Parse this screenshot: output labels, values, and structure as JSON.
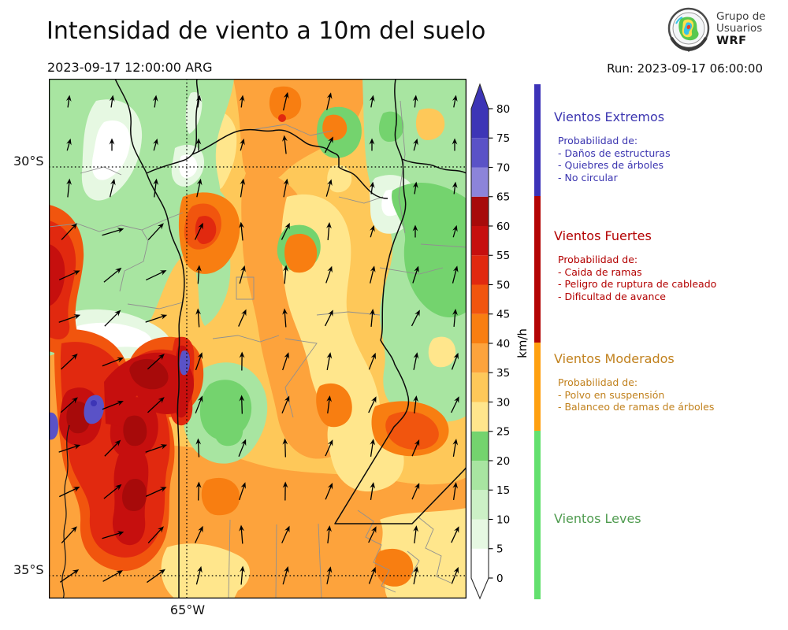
{
  "header": {
    "title": "Intensidad de viento a 10m del suelo",
    "valid_time": "2023-09-17 12:00:00 ARG",
    "run_label": "Run: 2023-09-17 06:00:00",
    "logo": {
      "line1": "Grupo de",
      "line2": "Usuarios",
      "line3": "WRF"
    }
  },
  "map_axes": {
    "lat_top_label": "30°S",
    "lat_bottom_label": "35°S",
    "lon_label": "65°W"
  },
  "colorbar": {
    "unit": "km/h",
    "ticks": [
      0,
      5,
      10,
      15,
      20,
      25,
      30,
      35,
      40,
      45,
      50,
      55,
      60,
      65,
      70,
      75,
      80
    ],
    "segments": [
      {
        "from": 0,
        "to": 5,
        "color": "#ffffff"
      },
      {
        "from": 5,
        "to": 10,
        "color": "#e6f8e2"
      },
      {
        "from": 10,
        "to": 15,
        "color": "#ccf0c6"
      },
      {
        "from": 15,
        "to": 20,
        "color": "#a8e5a1"
      },
      {
        "from": 20,
        "to": 25,
        "color": "#74d36e"
      },
      {
        "from": 25,
        "to": 30,
        "color": "#ffe68c"
      },
      {
        "from": 30,
        "to": 35,
        "color": "#fec859"
      },
      {
        "from": 35,
        "to": 40,
        "color": "#fda33c"
      },
      {
        "from": 40,
        "to": 45,
        "color": "#f87e11"
      },
      {
        "from": 45,
        "to": 50,
        "color": "#f1550e"
      },
      {
        "from": 50,
        "to": 55,
        "color": "#e1290f"
      },
      {
        "from": 55,
        "to": 60,
        "color": "#c60f0e"
      },
      {
        "from": 60,
        "to": 65,
        "color": "#a70a0a"
      },
      {
        "from": 65,
        "to": 70,
        "color": "#8c84da"
      },
      {
        "from": 70,
        "to": 75,
        "color": "#5a52c7"
      },
      {
        "from": 75,
        "to": 80,
        "color": "#3d35b6"
      }
    ],
    "extend_top_color": "#3d35b6",
    "extend_bottom_color": "#ffffff"
  },
  "categories": [
    {
      "name": "Vientos Extremos",
      "text_color": "#3b35b0",
      "bar_color": "#3c33b8",
      "lines": [
        "Probabilidad de:",
        "- Daños de estructuras",
        "- Quiebres de árboles",
        "- No circular"
      ]
    },
    {
      "name": "Vientos Fuertes",
      "text_color": "#b30000",
      "bar_color": "#b30505",
      "lines": [
        "Probabilidad de:",
        "- Caida de ramas",
        "- Peligro de ruptura de cableado",
        "- Dificultad de avance"
      ]
    },
    {
      "name": "Vientos Moderados",
      "text_color": "#c1811d",
      "bar_color": "#ffa010",
      "lines": [
        "Probabilidad de:",
        "- Polvo en suspensión",
        "- Balanceo de ramas de árboles"
      ]
    },
    {
      "name": "Vientos Leves",
      "text_color": "#4f9b4f",
      "bar_color": "#63e06e",
      "lines": []
    }
  ]
}
